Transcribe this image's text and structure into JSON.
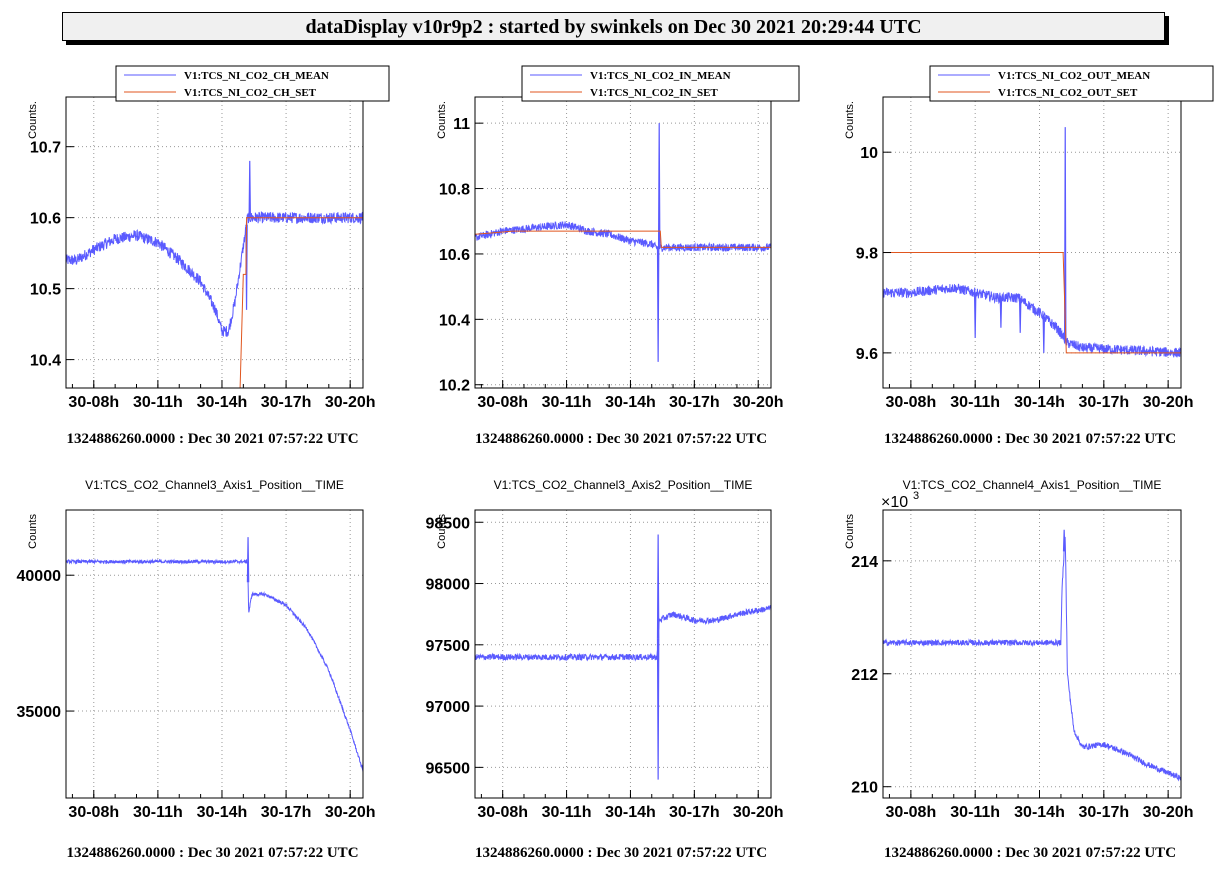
{
  "header": {
    "title": "dataDisplay v10r9p2 : started by swinkels on Dec 30 2021 20:29:44 UTC"
  },
  "colors": {
    "mean": "#5a5aff",
    "set": "#e0561f",
    "grid": "#999999"
  },
  "chart_data": [
    {
      "type": "line",
      "ylabel": "Counts.",
      "xticks": [
        "30-08h",
        "30-11h",
        "30-14h",
        "30-17h",
        "30-20h"
      ],
      "x_range_hours": [
        6.7,
        20.6
      ],
      "ylim": [
        10.36,
        10.77
      ],
      "yticks": [
        10.4,
        10.5,
        10.6,
        10.7
      ],
      "ytick_labels": [
        "10.4",
        "10.5",
        "10.6",
        "10.7"
      ],
      "grid": true,
      "legend": "top",
      "caption": "1324886260.0000 : Dec 30 2021 07:57:22 UTC",
      "series": [
        {
          "name": "V1:TCS_NI_CO2_CH_MEAN",
          "role": "mean",
          "noise": 0.008,
          "points": [
            [
              6.7,
              10.54
            ],
            [
              7.2,
              10.54
            ],
            [
              8.0,
              10.555
            ],
            [
              9.0,
              10.57
            ],
            [
              10.0,
              10.575
            ],
            [
              11.0,
              10.565
            ],
            [
              12.0,
              10.54
            ],
            [
              13.0,
              10.51
            ],
            [
              13.7,
              10.47
            ],
            [
              14.0,
              10.44
            ],
            [
              14.3,
              10.44
            ],
            [
              14.6,
              10.48
            ],
            [
              15.0,
              10.56
            ],
            [
              15.2,
              10.6
            ],
            [
              15.4,
              10.6
            ],
            [
              17.0,
              10.6
            ],
            [
              20.6,
              10.6
            ]
          ],
          "spikes": [
            [
              15.3,
              10.68
            ],
            [
              15.15,
              10.47
            ]
          ]
        },
        {
          "name": "V1:TCS_NI_CO2_CH_SET",
          "role": "set",
          "noise": 0,
          "points": [
            [
              14.85,
              10.36
            ],
            [
              15.0,
              10.52
            ],
            [
              15.12,
              10.52
            ],
            [
              15.15,
              10.6
            ],
            [
              20.6,
              10.6
            ]
          ]
        }
      ]
    },
    {
      "type": "line",
      "ylabel": "Counts.",
      "xticks": [
        "30-08h",
        "30-11h",
        "30-14h",
        "30-17h",
        "30-20h"
      ],
      "x_range_hours": [
        6.7,
        20.6
      ],
      "ylim": [
        10.19,
        11.08
      ],
      "yticks": [
        10.2,
        10.4,
        10.6,
        10.8,
        11.0
      ],
      "ytick_labels": [
        "10.2",
        "10.4",
        "10.6",
        "10.8",
        "11"
      ],
      "grid": true,
      "legend": "top",
      "caption": "1324886260.0000 : Dec 30 2021 07:57:22 UTC",
      "series": [
        {
          "name": "V1:TCS_NI_CO2_IN_MEAN",
          "role": "mean",
          "noise": 0.012,
          "points": [
            [
              6.7,
              10.65
            ],
            [
              8.0,
              10.67
            ],
            [
              9.5,
              10.68
            ],
            [
              11.0,
              10.69
            ],
            [
              12.0,
              10.67
            ],
            [
              13.0,
              10.66
            ],
            [
              14.0,
              10.64
            ],
            [
              15.0,
              10.63
            ],
            [
              15.2,
              10.62
            ],
            [
              20.6,
              10.62
            ]
          ],
          "spikes": [
            [
              15.35,
              11.0
            ],
            [
              15.3,
              10.27
            ]
          ]
        },
        {
          "name": "V1:TCS_NI_CO2_IN_SET",
          "role": "set",
          "noise": 0,
          "points": [
            [
              6.7,
              10.66
            ],
            [
              8.5,
              10.67
            ],
            [
              11.0,
              10.67
            ],
            [
              15.4,
              10.67
            ],
            [
              15.45,
              10.62
            ],
            [
              20.6,
              10.62
            ]
          ]
        }
      ]
    },
    {
      "type": "line",
      "ylabel": "Counts.",
      "xticks": [
        "30-08h",
        "30-11h",
        "30-14h",
        "30-17h",
        "30-20h"
      ],
      "x_range_hours": [
        6.7,
        20.6
      ],
      "ylim": [
        9.53,
        10.11
      ],
      "yticks": [
        9.6,
        9.8,
        10.0
      ],
      "ytick_labels": [
        "9.6",
        "9.8",
        "10"
      ],
      "grid": true,
      "legend": "top",
      "caption": "1324886260.0000 : Dec 30 2021 07:57:22 UTC",
      "series": [
        {
          "name": "V1:TCS_NI_CO2_OUT_MEAN",
          "role": "mean",
          "noise": 0.01,
          "points": [
            [
              6.7,
              9.72
            ],
            [
              8.0,
              9.72
            ],
            [
              10.0,
              9.73
            ],
            [
              11.0,
              9.72
            ],
            [
              12.0,
              9.71
            ],
            [
              13.0,
              9.71
            ],
            [
              14.0,
              9.68
            ],
            [
              14.8,
              9.65
            ],
            [
              15.3,
              9.62
            ],
            [
              16.0,
              9.61
            ],
            [
              20.6,
              9.6
            ]
          ],
          "spikes": [
            [
              15.2,
              10.05
            ],
            [
              11.0,
              9.63
            ],
            [
              12.2,
              9.65
            ],
            [
              13.1,
              9.64
            ],
            [
              14.2,
              9.6
            ]
          ]
        },
        {
          "name": "V1:TCS_NI_CO2_OUT_SET",
          "role": "set",
          "noise": 0,
          "points": [
            [
              6.7,
              9.8
            ],
            [
              15.1,
              9.8
            ],
            [
              15.25,
              9.6
            ],
            [
              20.6,
              9.6
            ]
          ]
        }
      ]
    },
    {
      "type": "line",
      "title": "V1:TCS_CO2_Channel3_Axis1_Position__TIME",
      "ylabel": "Counts",
      "xticks": [
        "30-08h",
        "30-11h",
        "30-14h",
        "30-17h",
        "30-20h"
      ],
      "x_range_hours": [
        6.7,
        20.6
      ],
      "ylim": [
        31800,
        42400
      ],
      "yticks": [
        35000,
        40000
      ],
      "ytick_labels": [
        "35000",
        "40000"
      ],
      "grid": true,
      "caption": "1324886260.0000 : Dec 30 2021 07:57:22 UTC",
      "series": [
        {
          "role": "mean",
          "noise": 60,
          "points": [
            [
              6.7,
              40500
            ],
            [
              15.2,
              40500
            ],
            [
              15.25,
              38600
            ],
            [
              15.4,
              39300
            ],
            [
              16.0,
              39300
            ],
            [
              17.0,
              38900
            ],
            [
              18.0,
              38000
            ],
            [
              19.0,
              36500
            ],
            [
              20.0,
              34300
            ],
            [
              20.6,
              32800
            ]
          ],
          "spikes": [
            [
              15.22,
              41400
            ]
          ]
        }
      ]
    },
    {
      "type": "line",
      "title": "V1:TCS_CO2_Channel3_Axis2_Position__TIME",
      "ylabel": "Counts",
      "xticks": [
        "30-08h",
        "30-11h",
        "30-14h",
        "30-17h",
        "30-20h"
      ],
      "x_range_hours": [
        6.7,
        20.6
      ],
      "ylim": [
        96250,
        98600
      ],
      "yticks": [
        96500,
        97000,
        97500,
        98000,
        98500
      ],
      "ytick_labels": [
        "96500",
        "97000",
        "97500",
        "98000",
        "98500"
      ],
      "grid": true,
      "caption": "1324886260.0000 : Dec 30 2021 07:57:22 UTC",
      "series": [
        {
          "role": "mean",
          "noise": 25,
          "points": [
            [
              6.7,
              97400
            ],
            [
              15.25,
              97400
            ],
            [
              15.35,
              97700
            ],
            [
              16.0,
              97750
            ],
            [
              17.0,
              97700
            ],
            [
              18.0,
              97700
            ],
            [
              19.0,
              97750
            ],
            [
              20.6,
              97800
            ]
          ],
          "spikes": [
            [
              15.3,
              98400
            ],
            [
              15.3,
              96400
            ]
          ]
        }
      ]
    },
    {
      "type": "line",
      "title": "V1:TCS_CO2_Channel4_Axis1_Position__TIME",
      "ylabel": "Counts",
      "exponent_label": "×10",
      "exponent_power": "3",
      "xticks": [
        "30-08h",
        "30-11h",
        "30-14h",
        "30-17h",
        "30-20h"
      ],
      "x_range_hours": [
        6.7,
        20.6
      ],
      "ylim": [
        209.8,
        214.9
      ],
      "yticks": [
        210,
        212,
        214
      ],
      "ytick_labels": [
        "210",
        "212",
        "214"
      ],
      "grid": true,
      "caption": "1324886260.0000 : Dec 30 2021 07:57:22 UTC",
      "series": [
        {
          "role": "mean",
          "noise": 0.05,
          "points": [
            [
              6.7,
              212.55
            ],
            [
              15.0,
              212.55
            ],
            [
              15.05,
              213.5
            ],
            [
              15.2,
              214.5
            ],
            [
              15.3,
              212.0
            ],
            [
              15.6,
              211.0
            ],
            [
              16.0,
              210.7
            ],
            [
              17.0,
              210.75
            ],
            [
              18.0,
              210.6
            ],
            [
              19.0,
              210.4
            ],
            [
              20.6,
              210.15
            ]
          ],
          "spikes": [
            [
              15.15,
              214.55
            ]
          ]
        }
      ]
    }
  ]
}
